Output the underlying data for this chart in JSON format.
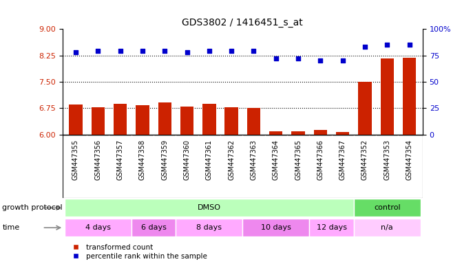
{
  "title": "GDS3802 / 1416451_s_at",
  "samples": [
    "GSM447355",
    "GSM447356",
    "GSM447357",
    "GSM447358",
    "GSM447359",
    "GSM447360",
    "GSM447361",
    "GSM447362",
    "GSM447363",
    "GSM447364",
    "GSM447365",
    "GSM447366",
    "GSM447367",
    "GSM447352",
    "GSM447353",
    "GSM447354"
  ],
  "bar_values": [
    6.85,
    6.78,
    6.87,
    6.84,
    6.92,
    6.8,
    6.87,
    6.78,
    6.76,
    6.1,
    6.1,
    6.13,
    6.07,
    7.5,
    8.17,
    8.18
  ],
  "scatter_values": [
    78,
    79,
    79,
    79,
    79,
    78,
    79,
    79,
    79,
    72,
    72,
    70,
    70,
    83,
    85,
    85
  ],
  "ylim_left": [
    6,
    9
  ],
  "ylim_right": [
    0,
    100
  ],
  "yticks_left": [
    6,
    6.75,
    7.5,
    8.25,
    9
  ],
  "yticks_right": [
    0,
    25,
    50,
    75,
    100
  ],
  "bar_color": "#cc2200",
  "scatter_color": "#0000cc",
  "hline_values": [
    6.75,
    7.5,
    8.25
  ],
  "growth_protocol_groups": [
    {
      "label": "DMSO",
      "start": 0,
      "end": 13,
      "color": "#bbffbb"
    },
    {
      "label": "control",
      "start": 13,
      "end": 16,
      "color": "#66dd66"
    }
  ],
  "time_groups": [
    {
      "label": "4 days",
      "start": 0,
      "end": 3,
      "color": "#ffaaff"
    },
    {
      "label": "6 days",
      "start": 3,
      "end": 5,
      "color": "#ee88ee"
    },
    {
      "label": "8 days",
      "start": 5,
      "end": 8,
      "color": "#ffaaff"
    },
    {
      "label": "10 days",
      "start": 8,
      "end": 11,
      "color": "#ee88ee"
    },
    {
      "label": "12 days",
      "start": 11,
      "end": 13,
      "color": "#ffaaff"
    },
    {
      "label": "n/a",
      "start": 13,
      "end": 16,
      "color": "#ffccff"
    }
  ],
  "legend_items": [
    {
      "label": "transformed count",
      "color": "#cc2200"
    },
    {
      "label": "percentile rank within the sample",
      "color": "#0000cc"
    }
  ],
  "growth_protocol_label": "growth protocol",
  "time_label": "time",
  "background_color": "#ffffff",
  "tick_label_color_left": "#cc2200",
  "tick_label_color_right": "#0000cc",
  "xtick_bg_color": "#dddddd",
  "bar_border_color": "none"
}
